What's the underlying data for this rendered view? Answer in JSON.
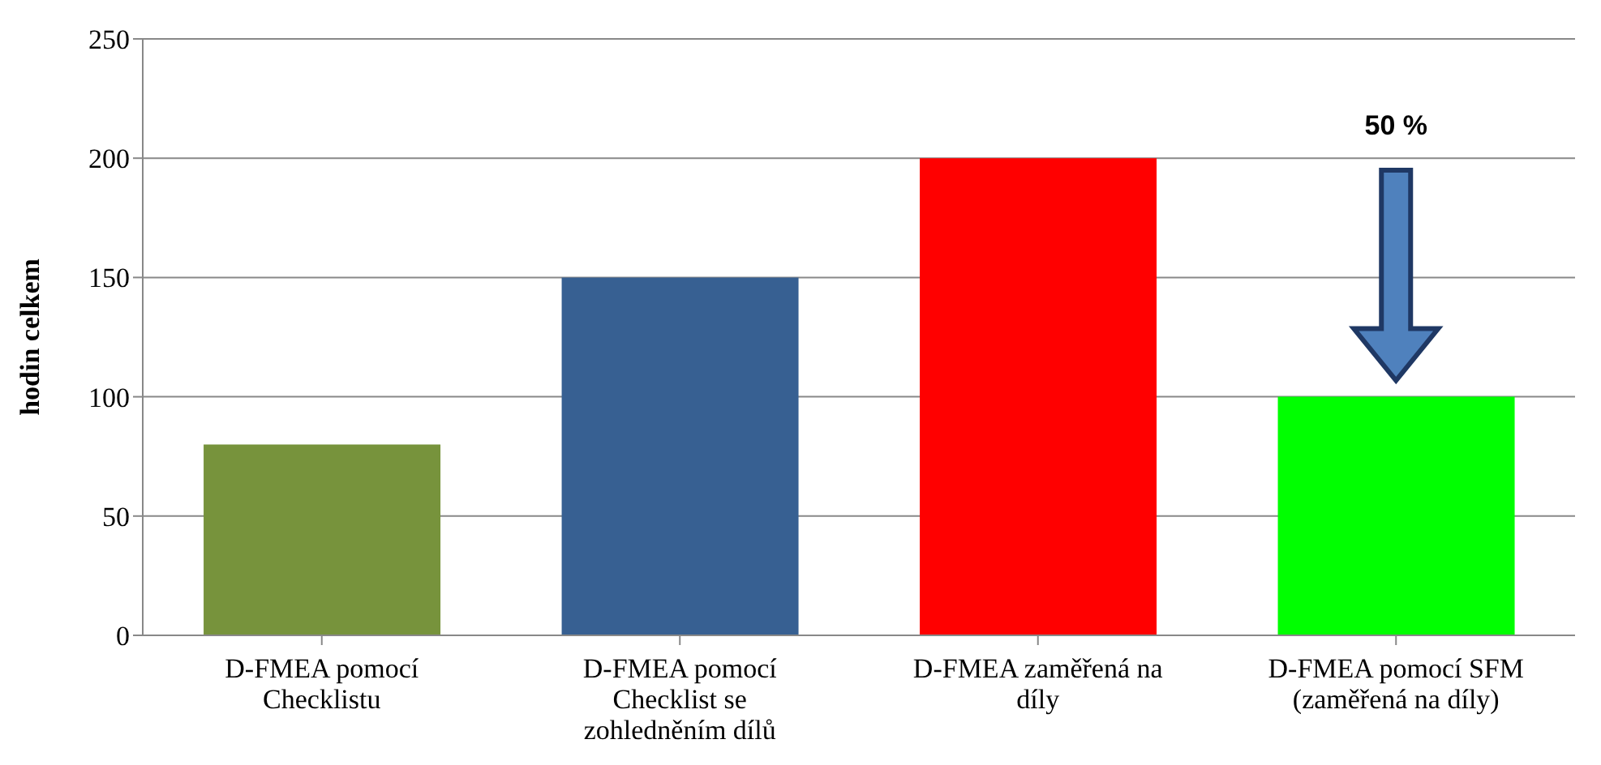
{
  "chart_data": {
    "type": "bar",
    "ylabel": "hodin celkem",
    "categories": [
      "D-FMEA pomocí Checklistu",
      "D-FMEA pomocí Checklist se zohledněním dílů",
      "D-FMEA zaměřená na díly",
      "D-FMEA pomocí SFM (zaměřená na díly)"
    ],
    "values": [
      80,
      150,
      200,
      100
    ],
    "colors": [
      "#77933c",
      "#376092",
      "#ff0000",
      "#00ff00"
    ],
    "ylim": [
      0,
      250
    ],
    "yticks": [
      0,
      50,
      100,
      150,
      200,
      250
    ],
    "grid": "y",
    "annotations": [
      "50 %"
    ]
  }
}
